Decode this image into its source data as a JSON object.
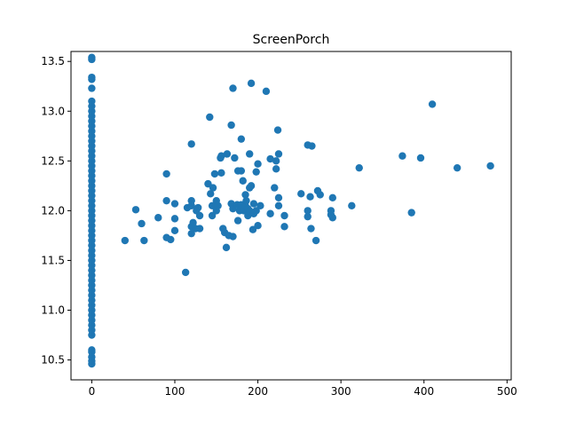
{
  "chart_data": {
    "type": "scatter",
    "title": "ScreenPorch",
    "xlabel": "",
    "ylabel": "",
    "xlim": [
      -25,
      505
    ],
    "ylim": [
      10.3,
      13.6
    ],
    "xticks": [
      0,
      100,
      200,
      300,
      400,
      500
    ],
    "yticks": [
      10.5,
      11.0,
      11.5,
      12.0,
      12.5,
      13.0,
      13.5
    ],
    "ytick_labels": [
      "10.5",
      "11.0",
      "11.5",
      "12.0",
      "12.5",
      "13.0",
      "13.5"
    ],
    "grid": false,
    "legend": "none",
    "marker_color": "#1f77b4",
    "series": [
      {
        "points": [
          [
            0,
            10.46
          ],
          [
            0,
            10.49
          ],
          [
            0,
            10.53
          ],
          [
            0,
            10.58
          ],
          [
            0,
            10.6
          ],
          [
            0,
            10.75
          ],
          [
            0,
            10.8
          ],
          [
            0,
            10.85
          ],
          [
            0,
            10.9
          ],
          [
            0,
            10.95
          ],
          [
            0,
            11.0
          ],
          [
            0,
            11.05
          ],
          [
            0,
            11.1
          ],
          [
            0,
            11.15
          ],
          [
            0,
            11.2
          ],
          [
            0,
            11.25
          ],
          [
            0,
            11.3
          ],
          [
            0,
            11.35
          ],
          [
            0,
            11.4
          ],
          [
            0,
            11.45
          ],
          [
            0,
            11.5
          ],
          [
            0,
            11.55
          ],
          [
            0,
            11.6
          ],
          [
            0,
            11.65
          ],
          [
            0,
            11.7
          ],
          [
            0,
            11.75
          ],
          [
            0,
            11.8
          ],
          [
            0,
            11.85
          ],
          [
            0,
            11.9
          ],
          [
            0,
            11.95
          ],
          [
            0,
            12.0
          ],
          [
            0,
            12.05
          ],
          [
            0,
            12.1
          ],
          [
            0,
            12.15
          ],
          [
            0,
            12.2
          ],
          [
            0,
            12.25
          ],
          [
            0,
            12.3
          ],
          [
            0,
            12.35
          ],
          [
            0,
            12.4
          ],
          [
            0,
            12.45
          ],
          [
            0,
            12.5
          ],
          [
            0,
            12.55
          ],
          [
            0,
            12.6
          ],
          [
            0,
            12.65
          ],
          [
            0,
            12.7
          ],
          [
            0,
            12.75
          ],
          [
            0,
            12.8
          ],
          [
            0,
            12.85
          ],
          [
            0,
            12.9
          ],
          [
            0,
            12.95
          ],
          [
            0,
            13.0
          ],
          [
            0,
            13.05
          ],
          [
            0,
            13.1
          ],
          [
            0,
            13.23
          ],
          [
            0,
            13.32
          ],
          [
            0,
            13.34
          ],
          [
            0,
            13.52
          ],
          [
            0,
            13.54
          ],
          [
            40,
            11.7
          ],
          [
            53,
            12.01
          ],
          [
            60,
            11.87
          ],
          [
            63,
            11.7
          ],
          [
            80,
            11.93
          ],
          [
            90,
            12.37
          ],
          [
            90,
            12.1
          ],
          [
            90,
            11.73
          ],
          [
            95,
            11.71
          ],
          [
            100,
            12.07
          ],
          [
            100,
            11.92
          ],
          [
            100,
            11.8
          ],
          [
            113,
            11.38
          ],
          [
            115,
            12.03
          ],
          [
            120,
            12.67
          ],
          [
            120,
            12.1
          ],
          [
            120,
            12.05
          ],
          [
            120,
            11.84
          ],
          [
            120,
            11.77
          ],
          [
            122,
            11.88
          ],
          [
            125,
            11.82
          ],
          [
            126,
            12.0
          ],
          [
            128,
            12.03
          ],
          [
            130,
            11.82
          ],
          [
            130,
            11.95
          ],
          [
            140,
            12.27
          ],
          [
            142,
            12.94
          ],
          [
            143,
            12.17
          ],
          [
            145,
            12.05
          ],
          [
            145,
            11.95
          ],
          [
            146,
            12.23
          ],
          [
            148,
            12.37
          ],
          [
            150,
            12.1
          ],
          [
            150,
            12.0
          ],
          [
            152,
            12.05
          ],
          [
            155,
            12.53
          ],
          [
            156,
            12.38
          ],
          [
            156,
            12.55
          ],
          [
            158,
            11.82
          ],
          [
            160,
            11.78
          ],
          [
            162,
            11.63
          ],
          [
            163,
            12.57
          ],
          [
            165,
            11.75
          ],
          [
            168,
            12.07
          ],
          [
            168,
            12.86
          ],
          [
            170,
            11.74
          ],
          [
            170,
            12.02
          ],
          [
            170,
            13.23
          ],
          [
            172,
            12.53
          ],
          [
            175,
            12.06
          ],
          [
            176,
            12.4
          ],
          [
            176,
            11.9
          ],
          [
            178,
            12.0
          ],
          [
            180,
            12.72
          ],
          [
            180,
            12.4
          ],
          [
            180,
            12.06
          ],
          [
            182,
            12.3
          ],
          [
            183,
            12.0
          ],
          [
            185,
            12.16
          ],
          [
            185,
            12.05
          ],
          [
            186,
            12.1
          ],
          [
            188,
            12.02
          ],
          [
            188,
            11.95
          ],
          [
            190,
            12.57
          ],
          [
            190,
            12.23
          ],
          [
            190,
            12.0
          ],
          [
            192,
            12.25
          ],
          [
            192,
            13.28
          ],
          [
            194,
            11.81
          ],
          [
            195,
            12.07
          ],
          [
            195,
            11.97
          ],
          [
            198,
            12.39
          ],
          [
            198,
            12.0
          ],
          [
            200,
            12.47
          ],
          [
            200,
            11.85
          ],
          [
            203,
            12.05
          ],
          [
            210,
            13.2
          ],
          [
            215,
            11.97
          ],
          [
            215,
            12.52
          ],
          [
            220,
            12.23
          ],
          [
            222,
            12.5
          ],
          [
            222,
            12.42
          ],
          [
            224,
            12.81
          ],
          [
            225,
            12.57
          ],
          [
            225,
            12.13
          ],
          [
            225,
            12.05
          ],
          [
            232,
            11.84
          ],
          [
            232,
            11.95
          ],
          [
            252,
            12.17
          ],
          [
            260,
            12.0
          ],
          [
            260,
            11.94
          ],
          [
            260,
            12.66
          ],
          [
            263,
            12.14
          ],
          [
            264,
            11.82
          ],
          [
            265,
            12.65
          ],
          [
            270,
            11.7
          ],
          [
            272,
            12.2
          ],
          [
            275,
            12.16
          ],
          [
            288,
            12.0
          ],
          [
            288,
            11.96
          ],
          [
            290,
            11.93
          ],
          [
            290,
            12.13
          ],
          [
            313,
            12.05
          ],
          [
            322,
            12.43
          ],
          [
            374,
            12.55
          ],
          [
            385,
            11.98
          ],
          [
            396,
            12.53
          ],
          [
            410,
            13.07
          ],
          [
            440,
            12.43
          ],
          [
            480,
            12.45
          ]
        ]
      }
    ]
  }
}
